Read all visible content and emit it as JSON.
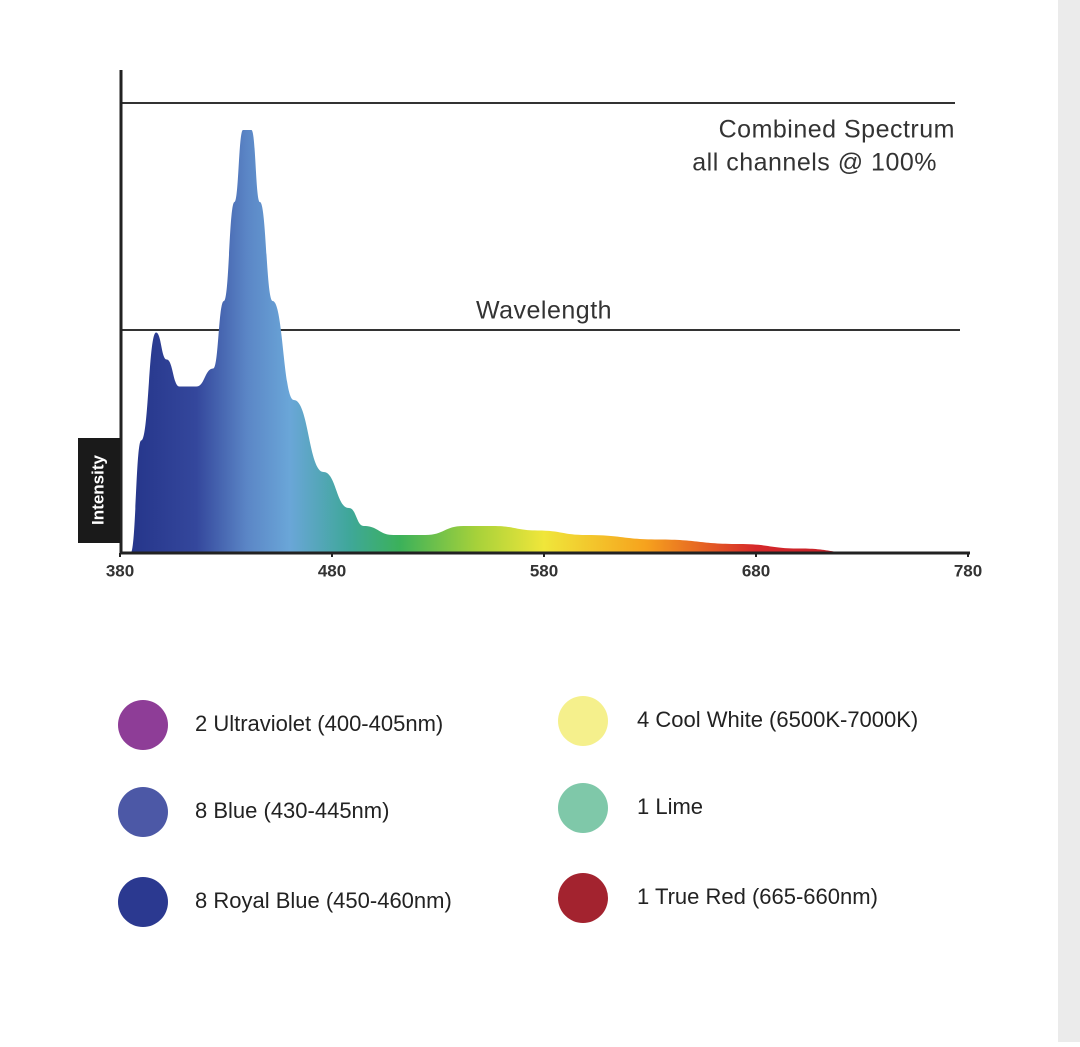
{
  "chart_data": {
    "type": "area",
    "annotations": [
      "Combined Spectrum",
      "all channels @ 100%"
    ],
    "xlabel": "Wavelength",
    "ylabel": "Intensity",
    "x": [
      385,
      390,
      397,
      402,
      408,
      416,
      424,
      429,
      434,
      438,
      442,
      446,
      452,
      462,
      476,
      488,
      495,
      509,
      524,
      542,
      556,
      577,
      600,
      634,
      672,
      701,
      728
    ],
    "values": [
      0,
      25,
      49,
      43,
      37,
      37,
      41,
      56,
      78,
      94,
      94,
      78,
      56,
      34,
      18,
      10,
      6,
      4,
      4,
      6,
      6,
      5,
      4,
      3,
      2,
      1,
      0
    ],
    "xlim": [
      380,
      780
    ],
    "xticks": [
      380,
      480,
      580,
      680,
      780
    ],
    "ylim": [
      0,
      100
    ],
    "legend": [
      {
        "label": "2 Ultraviolet (400-405nm)",
        "color": "#8e3d97"
      },
      {
        "label": "8 Blue (430-445nm)",
        "color": "#4c58a6"
      },
      {
        "label": "8 Royal Blue (450-460nm)",
        "color": "#2b3990"
      },
      {
        "label": "4 Cool White (6500K-7000K)",
        "color": "#f5f08c"
      },
      {
        "label": "1 Lime",
        "color": "#7fc8a9"
      },
      {
        "label": "1 True Red (665-660nm)",
        "color": "#a3232f"
      }
    ]
  }
}
